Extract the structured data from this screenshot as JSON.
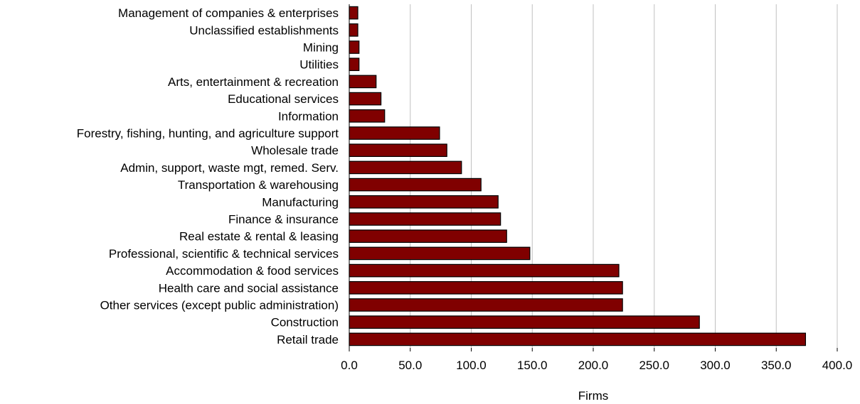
{
  "chart_data": {
    "type": "bar",
    "orientation": "horizontal",
    "categories": [
      "Management of companies & enterprises",
      "Unclassified establishments",
      "Mining",
      "Utilities",
      "Arts, entertainment & recreation",
      "Educational services",
      "Information",
      "Forestry, fishing, hunting, and agriculture support",
      "Wholesale trade",
      "Admin, support, waste mgt, remed. Serv.",
      "Transportation & warehousing",
      "Manufacturing",
      "Finance & insurance",
      "Real estate & rental & leasing",
      "Professional, scientific & technical services",
      "Accommodation & food services",
      "Health care and social assistance",
      "Other services (except public administration)",
      "Construction",
      "Retail trade"
    ],
    "values": [
      7,
      7,
      8,
      8,
      22,
      26,
      29,
      74,
      80,
      92,
      108,
      122,
      124,
      129,
      148,
      221,
      224,
      224,
      287,
      374
    ],
    "xlabel": "Firms",
    "xlim": [
      0,
      400
    ],
    "xticks": [
      "0.0",
      "50.0",
      "100.0",
      "150.0",
      "200.0",
      "250.0",
      "300.0",
      "350.0",
      "400.0"
    ],
    "grid": "vertical",
    "bar_color": "#800000"
  }
}
